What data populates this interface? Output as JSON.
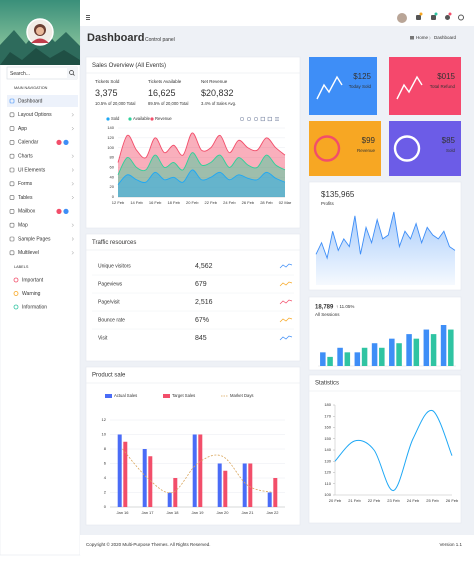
{
  "sidebar": {
    "search_placeholder": "Search...",
    "nav_heading": "MAIN NAVIGATION",
    "nav_items": [
      "Dashboard",
      "Layout Options",
      "App",
      "Calendar",
      "Charts",
      "UI Elements",
      "Forms",
      "Tables",
      "Mailbox",
      "Map",
      "Sample Pages",
      "Multilevel"
    ],
    "labels_heading": "LABELS",
    "labels": [
      {
        "name": "Important",
        "color": "#f24e6a"
      },
      {
        "name": "Warning",
        "color": "#f7a723"
      },
      {
        "name": "Information",
        "color": "#2fc4a2"
      }
    ]
  },
  "header": {
    "title": "Dashboard",
    "subtitle": "Control panel",
    "breadcrumb": [
      "Home",
      "Dashboard"
    ]
  },
  "stat_cards": [
    {
      "value": "$125",
      "label": "Today Sold",
      "color": "#3e8ef7"
    },
    {
      "value": "$015",
      "label": "Total Refund",
      "color": "#f5486c"
    },
    {
      "value": "$99",
      "label": "Revenue",
      "color": "#f7a723"
    },
    {
      "value": "$85",
      "label": "Sold",
      "color": "#6c5ce7"
    }
  ],
  "sales_kpis": [
    {
      "label": "Tickets Sold",
      "value": "3,375",
      "note": "10.5% of 20,000 Total",
      "color": "#f24e6a"
    },
    {
      "label": "Tickets Available",
      "value": "16,625",
      "note": "89.5% of 20,000 Total",
      "color": "#23b96b"
    },
    {
      "label": "Net Revenue",
      "value": "$20,832",
      "note": "3.4% of Sales Avg.",
      "color": "#3e8ef7"
    }
  ],
  "traffic": {
    "title": "Traffic resources",
    "rows": [
      [
        "Unique visitors",
        "4,562"
      ],
      [
        "Pageviews",
        "679"
      ],
      [
        "Page/visit",
        "2,516"
      ],
      [
        "Bounce rate",
        "67%"
      ],
      [
        "Visit",
        "845"
      ]
    ]
  },
  "chart_data": [
    {
      "type": "area",
      "title": "Sales Overview (All Events)",
      "categories": [
        "12 Feb",
        null,
        "14 Feb",
        null,
        "16 Feb",
        null,
        "18 Feb",
        null,
        "20 Feb",
        null,
        "22 Feb",
        null,
        "24 Feb",
        null,
        "26 Feb",
        null,
        "28 Feb",
        null,
        "02 Mar"
      ],
      "series": [
        {
          "name": "Sold",
          "color": "#1fa8f5",
          "values": [
            25,
            45,
            35,
            30,
            50,
            35,
            40,
            30,
            55,
            35,
            40,
            50,
            35,
            45,
            38,
            35,
            50,
            38,
            30
          ]
        },
        {
          "name": "Available",
          "color": "#2fd09a",
          "values": [
            45,
            80,
            60,
            55,
            85,
            60,
            70,
            55,
            90,
            65,
            70,
            85,
            60,
            80,
            65,
            60,
            85,
            65,
            55
          ]
        },
        {
          "name": "Revenue",
          "color": "#f24e6a",
          "values": [
            70,
            125,
            95,
            80,
            120,
            90,
            105,
            85,
            130,
            95,
            100,
            125,
            90,
            115,
            100,
            95,
            120,
            100,
            85
          ]
        }
      ],
      "ylim": [
        0,
        140
      ],
      "yticks": [
        0,
        20,
        40,
        60,
        80,
        100,
        120,
        140
      ],
      "grid": true
    },
    {
      "type": "area",
      "title": "$135,965",
      "subtitle": "Profits",
      "color": "#3e8ef7",
      "values": [
        40,
        55,
        35,
        70,
        45,
        60,
        50,
        90,
        40,
        75,
        55,
        85,
        60,
        65,
        95,
        50,
        70,
        60,
        80,
        55,
        75,
        65,
        60,
        70,
        50,
        45
      ]
    },
    {
      "type": "bar",
      "title": "18,789",
      "annotation": "↑ 11.05%",
      "subtitle": "All Sessions",
      "series": [
        {
          "color": "#3e8ef7",
          "values": [
            3,
            4,
            3,
            5,
            6,
            7,
            8,
            9
          ]
        },
        {
          "color": "#2fc4a2",
          "values": [
            2,
            3,
            4,
            4,
            5,
            6,
            7,
            8
          ]
        }
      ]
    },
    {
      "type": "bar",
      "title": "Product sale",
      "categories": [
        "Jan 16",
        "Jan 17",
        "Jan 18",
        "Jan 19",
        "Jan 20",
        "Jan 21",
        "Jan 22"
      ],
      "series": [
        {
          "name": "Actual Sales",
          "color": "#4a6cf7",
          "values": [
            10,
            8,
            2,
            10,
            6,
            6,
            2
          ]
        },
        {
          "name": "Target Sales",
          "color": "#f24e6a",
          "values": [
            9,
            7,
            4,
            10,
            5,
            6,
            4
          ]
        },
        {
          "name": "Market Days",
          "color": "#d9a55a",
          "type": "line",
          "values": [
            8,
            4,
            2,
            6,
            7,
            3,
            2
          ]
        }
      ],
      "ylim": [
        0,
        12
      ],
      "yticks": [
        0,
        2,
        4,
        6,
        8,
        10,
        12
      ],
      "grid": true
    },
    {
      "type": "line",
      "title": "Statistics",
      "categories": [
        "20 Feb",
        "21 Feb",
        "22 Feb",
        "23 Feb",
        "24 Feb",
        "25 Feb",
        "26 Feb"
      ],
      "series": [
        {
          "color": "#1fa8f5",
          "values": [
            130,
            148,
            140,
            104,
            150,
            175,
            135
          ]
        }
      ],
      "ylim": [
        100,
        180
      ],
      "yticks": [
        100,
        110,
        120,
        130,
        140,
        150,
        160,
        170,
        180
      ],
      "grid": false
    }
  ],
  "footer": {
    "copyright": "Copyright © 2020 Multi-Purpose Themes. All Rights Reserved.",
    "version": "Version 1.1"
  }
}
